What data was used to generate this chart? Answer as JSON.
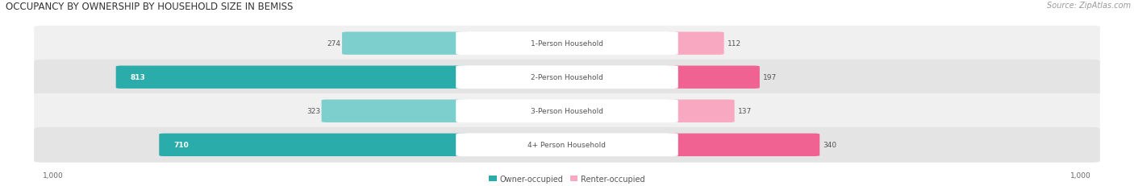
{
  "title": "OCCUPANCY BY OWNERSHIP BY HOUSEHOLD SIZE IN BEMISS",
  "source": "Source: ZipAtlas.com",
  "categories": [
    "1-Person Household",
    "2-Person Household",
    "3-Person Household",
    "4+ Person Household"
  ],
  "owner_values": [
    274,
    813,
    323,
    710
  ],
  "renter_values": [
    112,
    197,
    137,
    340
  ],
  "max_scale": 1000,
  "owner_color_dark": "#2aacaa",
  "owner_color_light": "#7dcfce",
  "renter_color_dark": "#f06292",
  "renter_color_light": "#f8a8c0",
  "row_bg_colors": [
    "#f0f0f0",
    "#e4e4e4",
    "#f0f0f0",
    "#e4e4e4"
  ],
  "title_fontsize": 8.5,
  "source_fontsize": 7,
  "label_fontsize": 6.5,
  "value_fontsize": 6.5,
  "tick_fontsize": 6.5,
  "legend_fontsize": 7
}
